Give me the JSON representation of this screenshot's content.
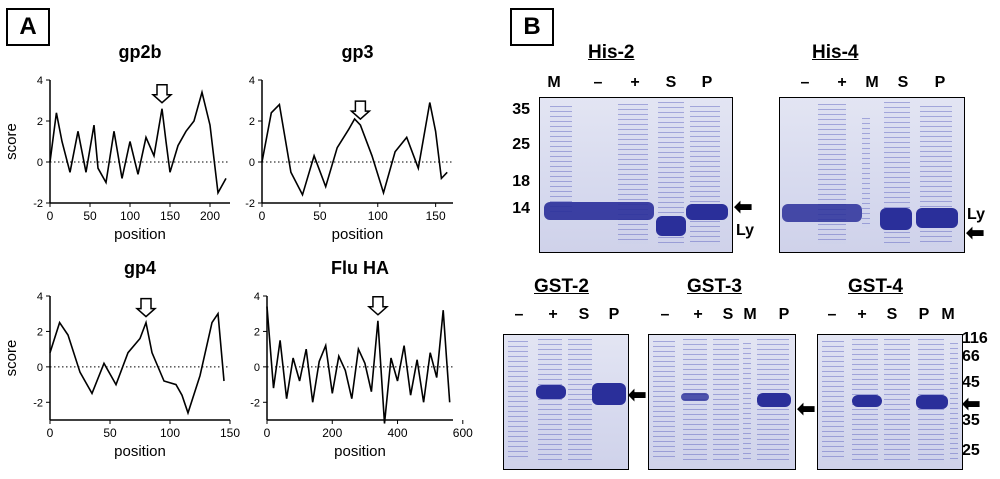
{
  "panel_labels": {
    "a": "A",
    "b": "B"
  },
  "chart_data": [
    {
      "type": "line",
      "title": "gp2b",
      "xlabel": "position",
      "ylabel": "score",
      "xlim": [
        0,
        225
      ],
      "ylim": [
        -2,
        4
      ],
      "xticks": [
        "0",
        "50",
        "100",
        "150",
        "200"
      ],
      "yticks": [
        "-2",
        "0",
        "2",
        "4"
      ],
      "annotation": "arrow at ~140",
      "x": [
        0,
        8,
        15,
        25,
        35,
        45,
        55,
        60,
        70,
        80,
        90,
        100,
        110,
        120,
        130,
        140,
        145,
        150,
        160,
        170,
        180,
        190,
        200,
        210,
        220
      ],
      "y": [
        0,
        2.4,
        1.0,
        -0.5,
        1.5,
        -0.5,
        1.8,
        -0.3,
        -1.0,
        1.5,
        -0.8,
        1.0,
        -0.6,
        1.2,
        0.3,
        2.6,
        1.0,
        -0.5,
        0.8,
        1.5,
        2.0,
        3.4,
        1.8,
        -1.5,
        -0.8
      ]
    },
    {
      "type": "line",
      "title": "gp3",
      "xlabel": "position",
      "ylabel": "score",
      "xlim": [
        0,
        165
      ],
      "ylim": [
        -2,
        4
      ],
      "xticks": [
        "0",
        "50",
        "100",
        "150"
      ],
      "yticks": [
        "-2",
        "0",
        "2",
        "4"
      ],
      "annotation": "arrow at ~85",
      "x": [
        0,
        8,
        15,
        25,
        35,
        45,
        55,
        65,
        75,
        80,
        85,
        95,
        105,
        115,
        125,
        135,
        145,
        150,
        155,
        160
      ],
      "y": [
        0,
        2.4,
        2.8,
        -0.5,
        -1.6,
        0.3,
        -1.2,
        0.7,
        1.6,
        2.1,
        1.8,
        0.3,
        -1.5,
        0.5,
        1.2,
        -0.3,
        2.9,
        1.5,
        -0.8,
        -0.5
      ]
    },
    {
      "type": "line",
      "title": "gp4",
      "xlabel": "position",
      "ylabel": "score",
      "xlim": [
        0,
        150
      ],
      "ylim": [
        -3,
        4
      ],
      "xticks": [
        "0",
        "50",
        "100",
        "150"
      ],
      "yticks": [
        "-2",
        "0",
        "2",
        "4"
      ],
      "annotation": "arrow at ~80",
      "x": [
        0,
        8,
        15,
        25,
        35,
        45,
        55,
        65,
        75,
        80,
        85,
        95,
        105,
        110,
        115,
        125,
        135,
        140,
        145
      ],
      "y": [
        0.8,
        2.5,
        1.8,
        -0.3,
        -1.5,
        0.2,
        -1.0,
        0.8,
        1.6,
        2.5,
        0.8,
        -0.8,
        -1.0,
        -1.6,
        -2.6,
        -0.5,
        2.5,
        3.0,
        -0.8
      ]
    },
    {
      "type": "line",
      "title": "Flu HA",
      "xlabel": "position",
      "ylabel": "score",
      "xlim": [
        0,
        570
      ],
      "ylim": [
        -3,
        4
      ],
      "xticks": [
        "0",
        "200",
        "400",
        "600"
      ],
      "yticks": [
        "-2",
        "0",
        "2",
        "4"
      ],
      "annotation": "arrow at ~340",
      "x": [
        0,
        20,
        40,
        60,
        80,
        100,
        120,
        140,
        160,
        180,
        200,
        220,
        240,
        260,
        280,
        300,
        320,
        340,
        360,
        380,
        400,
        420,
        440,
        460,
        480,
        500,
        520,
        540,
        550,
        560
      ],
      "y": [
        3.4,
        -1.2,
        1.5,
        -1.8,
        0.5,
        -0.8,
        1.0,
        -2.0,
        0.3,
        1.2,
        -1.5,
        0.6,
        -0.2,
        -1.8,
        1.0,
        0.2,
        -1.4,
        2.6,
        -3.2,
        0.5,
        -0.8,
        1.2,
        -1.6,
        0.4,
        -2.0,
        0.8,
        -0.6,
        3.2,
        0.5,
        -2.0
      ]
    }
  ],
  "gels": {
    "his2": {
      "title": "His-2",
      "lanes": [
        "M",
        "–",
        "+",
        "S",
        "P"
      ]
    },
    "his4": {
      "title": "His-4",
      "lanes": [
        "–",
        "+",
        "M",
        "S",
        "P"
      ]
    },
    "gst2": {
      "title": "GST-2",
      "lanes": [
        "–",
        "+",
        "S",
        "P"
      ]
    },
    "gst3": {
      "title": "GST-3",
      "lanes": [
        "–",
        "+",
        "S",
        "M",
        "P"
      ]
    },
    "gst4": {
      "title": "GST-4",
      "lanes": [
        "–",
        "+",
        "S",
        "P",
        "M"
      ]
    }
  },
  "markers_small": [
    "35",
    "25",
    "18",
    "14"
  ],
  "markers_large": [
    "116",
    "66",
    "45",
    "35",
    "25"
  ],
  "ly_label": "Ly",
  "arrow_glyph": "⬅",
  "colors": {
    "gel_band": "#2a2f9a",
    "gel_bg": "#d6d9ee"
  }
}
